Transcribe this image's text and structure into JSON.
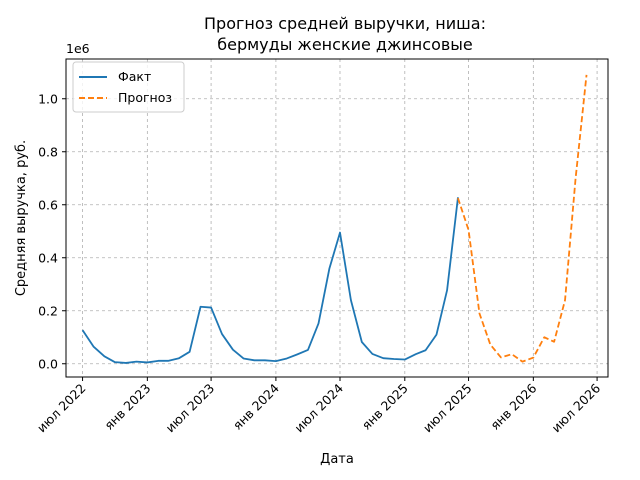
{
  "chart_data": {
    "type": "line",
    "title": [
      "Прогноз средней выручки, ниша:",
      "бермуды женские джинсовые"
    ],
    "xlabel": "Дата",
    "ylabel": "Средняя выручка, руб.",
    "y_offset_label": "1e6",
    "xlim": [
      "2022-05-15",
      "2026-08-01"
    ],
    "ylim": [
      -0.05,
      1.15
    ],
    "y_scale": 1000000,
    "y_ticks": [
      0.0,
      0.2,
      0.4,
      0.6,
      0.8,
      1.0
    ],
    "y_tick_labels": [
      "0.0",
      "0.2",
      "0.4",
      "0.6",
      "0.8",
      "1.0"
    ],
    "x_ticks": [
      "2022-07-01",
      "2023-01-01",
      "2023-07-01",
      "2024-01-01",
      "2024-07-01",
      "2025-01-01",
      "2025-07-01",
      "2026-01-01",
      "2026-07-01"
    ],
    "x_tick_labels": [
      "июл 2022",
      "янв 2023",
      "июл 2023",
      "янв 2024",
      "июл 2024",
      "янв 2025",
      "июл 2025",
      "янв 2026",
      "июл 2026"
    ],
    "grid": true,
    "legend_position": "top-left",
    "series": [
      {
        "name": "Факт",
        "color": "#1f77b4",
        "style": "solid",
        "points": [
          [
            "2022-07-01",
            0.127
          ],
          [
            "2022-08-01",
            0.065
          ],
          [
            "2022-09-01",
            0.028
          ],
          [
            "2022-10-01",
            0.006
          ],
          [
            "2022-11-01",
            0.003
          ],
          [
            "2022-12-01",
            0.008
          ],
          [
            "2023-01-01",
            0.005
          ],
          [
            "2023-02-01",
            0.011
          ],
          [
            "2023-03-01",
            0.011
          ],
          [
            "2023-04-01",
            0.021
          ],
          [
            "2023-05-01",
            0.045
          ],
          [
            "2023-06-01",
            0.215
          ],
          [
            "2023-07-01",
            0.212
          ],
          [
            "2023-08-01",
            0.112
          ],
          [
            "2023-09-01",
            0.053
          ],
          [
            "2023-10-01",
            0.02
          ],
          [
            "2023-11-01",
            0.013
          ],
          [
            "2023-12-01",
            0.013
          ],
          [
            "2024-01-01",
            0.01
          ],
          [
            "2024-02-01",
            0.02
          ],
          [
            "2024-03-01",
            0.035
          ],
          [
            "2024-04-01",
            0.052
          ],
          [
            "2024-05-01",
            0.152
          ],
          [
            "2024-06-01",
            0.36
          ],
          [
            "2024-07-01",
            0.495
          ],
          [
            "2024-08-01",
            0.24
          ],
          [
            "2024-09-01",
            0.082
          ],
          [
            "2024-10-01",
            0.037
          ],
          [
            "2024-11-01",
            0.021
          ],
          [
            "2024-12-01",
            0.018
          ],
          [
            "2025-01-01",
            0.016
          ],
          [
            "2025-02-01",
            0.036
          ],
          [
            "2025-03-01",
            0.051
          ],
          [
            "2025-04-01",
            0.11
          ],
          [
            "2025-05-01",
            0.277
          ],
          [
            "2025-06-01",
            0.628
          ]
        ]
      },
      {
        "name": "Прогноз",
        "color": "#ff7f0e",
        "style": "dashed",
        "points": [
          [
            "2025-06-01",
            0.625
          ],
          [
            "2025-07-01",
            0.505
          ],
          [
            "2025-08-01",
            0.19
          ],
          [
            "2025-09-01",
            0.072
          ],
          [
            "2025-10-01",
            0.024
          ],
          [
            "2025-11-01",
            0.036
          ],
          [
            "2025-12-01",
            0.008
          ],
          [
            "2026-01-01",
            0.023
          ],
          [
            "2026-02-01",
            0.1
          ],
          [
            "2026-03-01",
            0.083
          ],
          [
            "2026-04-01",
            0.24
          ],
          [
            "2026-05-01",
            0.7
          ],
          [
            "2026-06-01",
            1.09
          ]
        ]
      }
    ]
  }
}
